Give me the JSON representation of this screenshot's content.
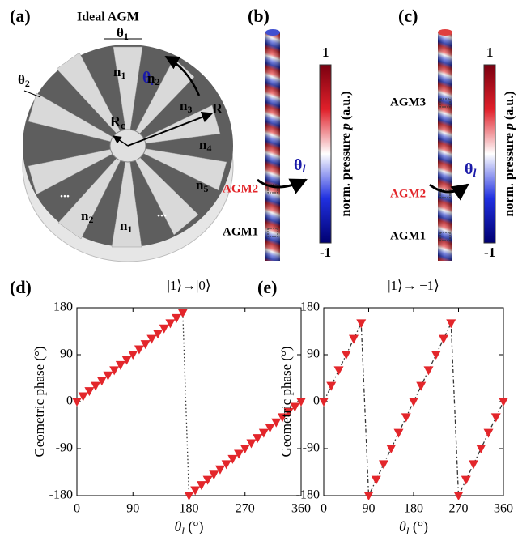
{
  "panels": {
    "a": {
      "label": "(a)",
      "title": "Ideal AGM",
      "theta1": {
        "base": "θ",
        "sub": "1"
      },
      "theta2": {
        "base": "θ",
        "sub": "2"
      },
      "theta_l": {
        "base": "θ",
        "sub": "l"
      },
      "regions": [
        {
          "base": "n",
          "sub": "1"
        },
        {
          "base": "n",
          "sub": "2"
        },
        {
          "base": "n",
          "sub": "3"
        },
        {
          "base": "n",
          "sub": "4"
        },
        {
          "base": "n",
          "sub": "5"
        },
        {
          "base": "n",
          "sub": "2"
        },
        {
          "base": "n",
          "sub": "1"
        }
      ],
      "ellipses": [
        "...",
        "..."
      ],
      "rc": {
        "base": "R",
        "sub": "c"
      },
      "r": "R"
    },
    "b": {
      "label": "(b)",
      "agm_labels": [
        "AGM2",
        "AGM1"
      ],
      "theta_l": {
        "base": "θ",
        "sub": "l"
      },
      "colorbar": {
        "max": "1",
        "min": "-1",
        "label": {
          "pre": "norm. pressure ",
          "sym": "p",
          "post": " (a.u.)"
        }
      }
    },
    "c": {
      "label": "(c)",
      "agm_labels": [
        "AGM3",
        "AGM2",
        "AGM1"
      ],
      "theta_l": {
        "base": "θ",
        "sub": "l"
      },
      "colorbar": {
        "max": "1",
        "min": "-1",
        "label": {
          "pre": "norm. pressure ",
          "sym": "p",
          "post": " (a.u.)"
        }
      }
    }
  },
  "chart_data": [
    {
      "type": "line",
      "panel": "(d)",
      "title": "|1⟩→|0⟩",
      "ylabel": "Geometric phase (°)",
      "xlabel": {
        "symbol": "θ",
        "sub": "l",
        "unit": " (°)"
      },
      "x": [
        0,
        10,
        20,
        30,
        40,
        50,
        60,
        70,
        80,
        90,
        100,
        110,
        120,
        130,
        140,
        150,
        160,
        170,
        180,
        190,
        200,
        210,
        220,
        230,
        240,
        250,
        260,
        270,
        280,
        290,
        300,
        310,
        320,
        330,
        340,
        350,
        360
      ],
      "values": [
        0,
        10,
        20,
        30,
        40,
        50,
        60,
        70,
        80,
        90,
        100,
        110,
        120,
        130,
        140,
        150,
        160,
        170,
        -180,
        -170,
        -160,
        -150,
        -140,
        -130,
        -120,
        -110,
        -100,
        -90,
        -80,
        -70,
        -60,
        -50,
        -40,
        -30,
        -20,
        -10,
        0
      ],
      "color": "#e3262b",
      "marker": "triangle",
      "line_color": "#333333",
      "linestyle": "dotted",
      "xlim": [
        0,
        360
      ],
      "xticks": [
        0,
        90,
        180,
        270,
        360
      ],
      "ylim": [
        -180,
        180
      ],
      "yticks": [
        -180,
        -90,
        0,
        90,
        180
      ]
    },
    {
      "type": "line",
      "panel": "(e)",
      "title": "|1⟩→|−1⟩",
      "ylabel": "Geometric phase (°)",
      "xlabel": {
        "symbol": "θ",
        "sub": "l",
        "unit": " (°)"
      },
      "x": [
        0,
        15,
        30,
        45,
        60,
        75,
        90,
        105,
        120,
        135,
        150,
        165,
        180,
        195,
        210,
        225,
        240,
        255,
        270,
        285,
        300,
        315,
        330,
        345,
        360
      ],
      "values": [
        0,
        30,
        60,
        90,
        120,
        150,
        -180,
        -150,
        -120,
        -90,
        -60,
        -30,
        0,
        30,
        60,
        90,
        120,
        150,
        -180,
        -150,
        -120,
        -90,
        -60,
        -30,
        0
      ],
      "color": "#e3262b",
      "marker": "triangle",
      "line_color": "#333333",
      "linestyle": "dashdot",
      "xlim": [
        0,
        360
      ],
      "xticks": [
        0,
        90,
        180,
        270,
        360
      ],
      "ylim": [
        -180,
        180
      ],
      "yticks": [
        -180,
        -90,
        0,
        90,
        180
      ]
    }
  ]
}
